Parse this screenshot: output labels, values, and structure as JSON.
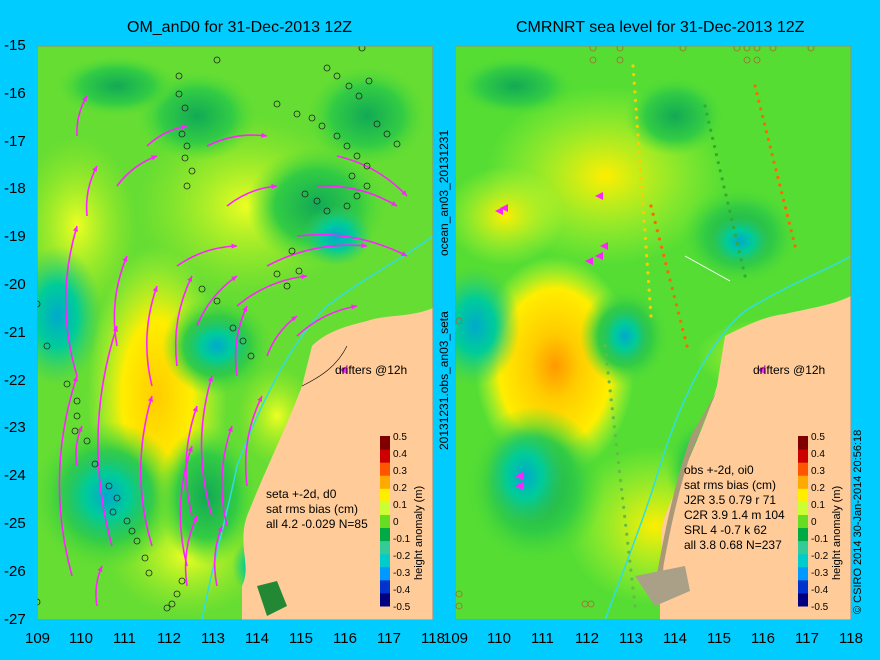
{
  "left_panel": {
    "title": "OM_anD0 for 31-Dec-2013 12Z",
    "drifters_label": "drifters @12h",
    "stats": [
      "seta +-2d, d0",
      "sat rms bias (cm)",
      "all 4.2 -0.029 N=85"
    ]
  },
  "right_panel": {
    "title": "CMRNRT sea level  for 31-Dec-2013 12Z",
    "drifters_label": "drifters @12h",
    "stats": [
      "obs +-2d, oi0",
      "sat rms bias (cm)",
      "J2R   3.5 0.79 r 71",
      "C2R   3.9 1.4 m 104",
      "SRL    4 -0.7 k 62",
      "all   3.8 0.68 N=237"
    ]
  },
  "y_ticks": [
    "-15",
    "-16",
    "-17",
    "-18",
    "-19",
    "-20",
    "-21",
    "-22",
    "-23",
    "-24",
    "-25",
    "-26",
    "-27"
  ],
  "x_ticks_left": [
    "109",
    "110",
    "111",
    "112",
    "113",
    "114",
    "115",
    "116",
    "117",
    "118"
  ],
  "x_ticks_right": [
    "109",
    "110",
    "111",
    "112",
    "113",
    "114",
    "115",
    "116",
    "117",
    "118"
  ],
  "colorbar": {
    "label": "height anomaly (m)",
    "ticks": [
      "0.5",
      "0.4",
      "0.3",
      "0.2",
      "0.1",
      "0",
      "-0.1",
      "-0.2",
      "-0.3",
      "-0.4",
      "-0.5"
    ]
  },
  "side_labels": {
    "top": "ocean_an03_20131231",
    "middle": "20131231.obs_an03_seta",
    "credit": "© CSIRO 2014   30-Jan-2014 20:56:18"
  },
  "colors": {
    "background": "#00ccff",
    "land": "#ffcc99",
    "drifter": "#ff22ff",
    "scale": [
      "#000080",
      "#0033cc",
      "#0099ff",
      "#00cccc",
      "#33cc99",
      "#00aa44",
      "#66dd22",
      "#ccff33",
      "#ffee00",
      "#ffaa00",
      "#ff5500",
      "#cc0000",
      "#800000"
    ]
  }
}
